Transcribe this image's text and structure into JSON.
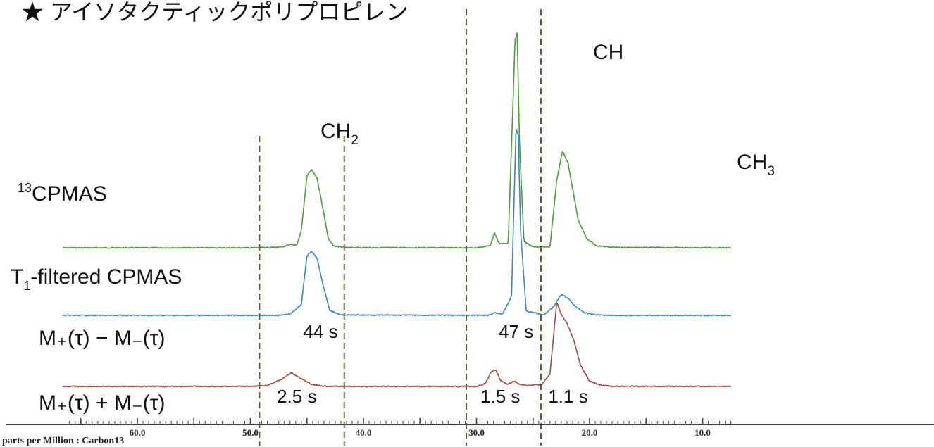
{
  "chart_data": {
    "type": "line",
    "title": "★ アイソタクティックポリプロピレン",
    "xlabel": "parts per Million : Carbon13",
    "x_reversed": true,
    "xlim": [
      66.6,
      7.5
    ],
    "x_ticks": [
      {
        "value": 60,
        "label": "60.0"
      },
      {
        "value": 50,
        "label": "50.0"
      },
      {
        "value": 40,
        "label": "40.0"
      },
      {
        "value": 30,
        "label": "30.0"
      },
      {
        "value": 20,
        "label": "20.0"
      },
      {
        "value": 10,
        "label": "10.0"
      }
    ],
    "integration_boundaries_ppm": [
      49.2,
      41.7,
      30.9,
      24.3
    ],
    "series": [
      {
        "name": "13C CPMAS",
        "color": "#4f9a3c",
        "points": [
          [
            66.6,
            0
          ],
          [
            50,
            0
          ],
          [
            47.2,
            0.3
          ],
          [
            46.4,
            1.6
          ],
          [
            45.9,
            1.3
          ],
          [
            45.5,
            8.0
          ],
          [
            45.0,
            34.0
          ],
          [
            44.6,
            37.0
          ],
          [
            44.1,
            33.0
          ],
          [
            43.6,
            19.0
          ],
          [
            43.1,
            4.0
          ],
          [
            42.6,
            0.8
          ],
          [
            41.6,
            0.1
          ],
          [
            30.0,
            0
          ],
          [
            28.8,
            1.0
          ],
          [
            28.4,
            7.0
          ],
          [
            28.0,
            2.0
          ],
          [
            27.2,
            2.0
          ],
          [
            26.7,
            80.0
          ],
          [
            26.6,
            98.0
          ],
          [
            26.4,
            102.0
          ],
          [
            26.2,
            50.0
          ],
          [
            25.8,
            3.0
          ],
          [
            25.0,
            0.4
          ],
          [
            23.5,
            0.5
          ],
          [
            22.9,
            32.0
          ],
          [
            22.4,
            46.0
          ],
          [
            21.9,
            40.0
          ],
          [
            21.5,
            28.0
          ],
          [
            21.0,
            13.0
          ],
          [
            20.2,
            4.0
          ],
          [
            19.4,
            1.0
          ],
          [
            18.0,
            0.2
          ],
          [
            7.5,
            0
          ]
        ]
      },
      {
        "name": "T₁-filtered CPMAS",
        "color": "#3f86b5",
        "points": [
          [
            66.6,
            0
          ],
          [
            47.5,
            0
          ],
          [
            46.5,
            0.6
          ],
          [
            45.5,
            5.0
          ],
          [
            45.0,
            28.0
          ],
          [
            44.6,
            30.5
          ],
          [
            44.1,
            27.0
          ],
          [
            43.6,
            15.0
          ],
          [
            43.0,
            2.5
          ],
          [
            42.0,
            0.2
          ],
          [
            29.0,
            0
          ],
          [
            28.4,
            1.2
          ],
          [
            27.7,
            0.6
          ],
          [
            26.9,
            9.0
          ],
          [
            26.7,
            50.0
          ],
          [
            26.5,
            89.0
          ],
          [
            26.3,
            85.0
          ],
          [
            26.1,
            40.0
          ],
          [
            25.6,
            2.0
          ],
          [
            24.0,
            0.3
          ],
          [
            23.2,
            4.0
          ],
          [
            22.5,
            10.0
          ],
          [
            21.9,
            8.0
          ],
          [
            21.2,
            4.0
          ],
          [
            20.4,
            1.2
          ],
          [
            19.5,
            0.3
          ],
          [
            18.0,
            0
          ],
          [
            7.5,
            0
          ]
        ]
      },
      {
        "name": "M₊(τ) + M₋(τ)",
        "color": "#a04a4a",
        "points": [
          [
            66.6,
            0
          ],
          [
            50,
            0
          ],
          [
            48.5,
            0.5
          ],
          [
            47.2,
            3.5
          ],
          [
            46.4,
            6.5
          ],
          [
            45.6,
            4.0
          ],
          [
            44.6,
            1.0
          ],
          [
            43.5,
            0.2
          ],
          [
            42.0,
            0
          ],
          [
            30.0,
            0
          ],
          [
            29.2,
            1.5
          ],
          [
            28.7,
            7.0
          ],
          [
            28.3,
            8.0
          ],
          [
            27.9,
            3.0
          ],
          [
            27.3,
            1.0
          ],
          [
            26.6,
            2.5
          ],
          [
            26.3,
            1.2
          ],
          [
            25.6,
            0.5
          ],
          [
            24.2,
            1.0
          ],
          [
            23.5,
            6.0
          ],
          [
            22.9,
            40.0
          ],
          [
            22.5,
            34.0
          ],
          [
            22.0,
            30.0
          ],
          [
            21.4,
            22.0
          ],
          [
            20.8,
            10.0
          ],
          [
            20.0,
            2.5
          ],
          [
            19.0,
            0.6
          ],
          [
            18.0,
            0.1
          ],
          [
            7.5,
            0
          ]
        ]
      }
    ],
    "row_labels": {
      "cp": "CPMAS",
      "cp_sup": "13",
      "t1_base": "T",
      "t1_sub": "1",
      "t1_rest": "-filtered CPMAS",
      "diff": "M₊(τ)  −  M₋(τ)",
      "sum": "M₊(τ)  +  M₋(τ)"
    },
    "peak_labels": {
      "ch2_base": "CH",
      "ch2_sub": "2",
      "ch": "CH",
      "ch3_base": "CH",
      "ch3_sub": "3"
    },
    "t1_values": [
      {
        "label": "44 s",
        "ppm": 43.8,
        "row": "diff"
      },
      {
        "label": "47 s",
        "ppm": 26.5,
        "row": "diff"
      },
      {
        "label": "2.5 s",
        "ppm": 45.9,
        "row": "sum"
      },
      {
        "label": "1.5 s",
        "ppm": 27.9,
        "row": "sum"
      },
      {
        "label": "1.1 s",
        "ppm": 21.9,
        "row": "sum"
      }
    ]
  }
}
